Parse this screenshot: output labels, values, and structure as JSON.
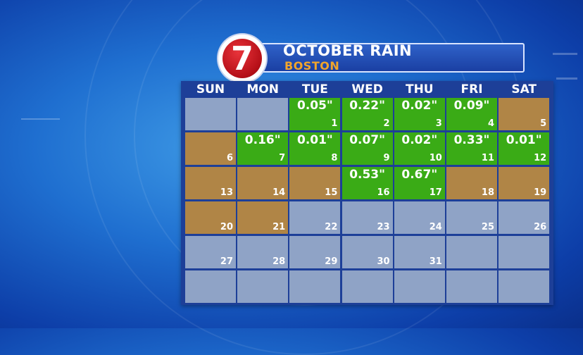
{
  "header": {
    "title": "OCTOBER RAIN",
    "subtitle": "BOSTON",
    "logo_number": "7"
  },
  "colors": {
    "rain": "#3aab16",
    "dry": "#b08546",
    "empty": "#8fa3c6"
  },
  "days_of_week": [
    "SUN",
    "MON",
    "TUE",
    "WED",
    "THU",
    "FRI",
    "SAT"
  ],
  "weeks": [
    [
      {
        "day": "",
        "amount": "",
        "status": "none"
      },
      {
        "day": "",
        "amount": "",
        "status": "none"
      },
      {
        "day": "1",
        "amount": "0.05\"",
        "status": "rain"
      },
      {
        "day": "2",
        "amount": "0.22\"",
        "status": "rain"
      },
      {
        "day": "3",
        "amount": "0.02\"",
        "status": "rain"
      },
      {
        "day": "4",
        "amount": "0.09\"",
        "status": "rain"
      },
      {
        "day": "5",
        "amount": "",
        "status": "dry"
      }
    ],
    [
      {
        "day": "6",
        "amount": "",
        "status": "dry"
      },
      {
        "day": "7",
        "amount": "0.16\"",
        "status": "rain"
      },
      {
        "day": "8",
        "amount": "0.01\"",
        "status": "rain"
      },
      {
        "day": "9",
        "amount": "0.07\"",
        "status": "rain"
      },
      {
        "day": "10",
        "amount": "0.02\"",
        "status": "rain"
      },
      {
        "day": "11",
        "amount": "0.33\"",
        "status": "rain"
      },
      {
        "day": "12",
        "amount": "0.01\"",
        "status": "rain"
      }
    ],
    [
      {
        "day": "13",
        "amount": "",
        "status": "dry"
      },
      {
        "day": "14",
        "amount": "",
        "status": "dry"
      },
      {
        "day": "15",
        "amount": "",
        "status": "dry"
      },
      {
        "day": "16",
        "amount": "0.53\"",
        "status": "rain"
      },
      {
        "day": "17",
        "amount": "0.67\"",
        "status": "rain"
      },
      {
        "day": "18",
        "amount": "",
        "status": "dry"
      },
      {
        "day": "19",
        "amount": "",
        "status": "dry"
      }
    ],
    [
      {
        "day": "20",
        "amount": "",
        "status": "dry"
      },
      {
        "day": "21",
        "amount": "",
        "status": "dry"
      },
      {
        "day": "22",
        "amount": "",
        "status": "none"
      },
      {
        "day": "23",
        "amount": "",
        "status": "none"
      },
      {
        "day": "24",
        "amount": "",
        "status": "none"
      },
      {
        "day": "25",
        "amount": "",
        "status": "none"
      },
      {
        "day": "26",
        "amount": "",
        "status": "none"
      }
    ],
    [
      {
        "day": "27",
        "amount": "",
        "status": "none"
      },
      {
        "day": "28",
        "amount": "",
        "status": "none"
      },
      {
        "day": "29",
        "amount": "",
        "status": "none"
      },
      {
        "day": "30",
        "amount": "",
        "status": "none"
      },
      {
        "day": "31",
        "amount": "",
        "status": "none"
      },
      {
        "day": "",
        "amount": "",
        "status": "none"
      },
      {
        "day": "",
        "amount": "",
        "status": "none"
      }
    ],
    [
      {
        "day": "",
        "amount": "",
        "status": "none"
      },
      {
        "day": "",
        "amount": "",
        "status": "none"
      },
      {
        "day": "",
        "amount": "",
        "status": "none"
      },
      {
        "day": "",
        "amount": "",
        "status": "none"
      },
      {
        "day": "",
        "amount": "",
        "status": "none"
      },
      {
        "day": "",
        "amount": "",
        "status": "none"
      },
      {
        "day": "",
        "amount": "",
        "status": "none"
      }
    ]
  ]
}
